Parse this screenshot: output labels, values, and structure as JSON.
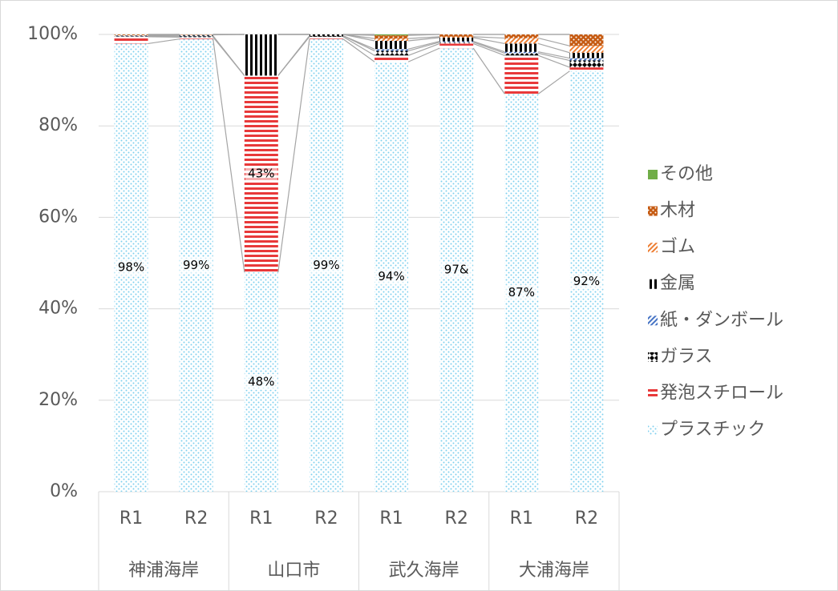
{
  "chart_data": {
    "type": "stacked_bar_100",
    "categories": [
      "R1",
      "R2",
      "R1",
      "R2",
      "R1",
      "R2",
      "R1",
      "R2"
    ],
    "category_groups": [
      "神浦海岸",
      "山口市",
      "武久海岸",
      "大浦海岸"
    ],
    "ylim": [
      0,
      100
    ],
    "yticks": [
      {
        "value": 0,
        "label": "0%"
      },
      {
        "value": 20,
        "label": "20%"
      },
      {
        "value": 40,
        "label": "40%"
      },
      {
        "value": 60,
        "label": "60%"
      },
      {
        "value": 80,
        "label": "80%"
      },
      {
        "value": 100,
        "label": "100%"
      }
    ],
    "grid": true,
    "legend": "right",
    "series": [
      {
        "name": "プラスチック",
        "color": "#7fd0ee",
        "pattern": "dots",
        "values": [
          98,
          99,
          48,
          99,
          94,
          97,
          87,
          92
        ],
        "value_labels": [
          "98%",
          "99%",
          "48%",
          "99%",
          "94%",
          "97&",
          "87%",
          "92%"
        ]
      },
      {
        "name": "発泡スチロール",
        "color": "#e8393a",
        "pattern": "hstripes",
        "values": [
          1.5,
          0.4,
          43,
          0.5,
          1.4,
          1.0,
          8.4,
          0.8
        ],
        "value_labels": [
          null,
          null,
          "43%",
          null,
          null,
          null,
          null,
          null
        ]
      },
      {
        "name": "ガラス",
        "color": "#000000",
        "pattern": "diamonds",
        "values": [
          0.1,
          0.2,
          0,
          0.2,
          1.0,
          0.3,
          0.5,
          1.5
        ]
      },
      {
        "name": "紙・ダンボール",
        "color": "#4472c4",
        "pattern": "diagonal",
        "values": [
          0.1,
          0.1,
          0,
          0,
          0.4,
          0.2,
          0.3,
          0.5
        ]
      },
      {
        "name": "金属",
        "color": "#000000",
        "pattern": "vstripes",
        "values": [
          0.1,
          0.2,
          9,
          0.3,
          1.8,
          0.8,
          1.8,
          1.2
        ]
      },
      {
        "name": "ゴム",
        "color": "#ed7d31",
        "pattern": "diagonal",
        "values": [
          0.1,
          0.1,
          0,
          0,
          0.5,
          0.2,
          1.2,
          1.5
        ]
      },
      {
        "name": "木材",
        "color": "#c55a11",
        "pattern": "dots",
        "values": [
          0.1,
          0,
          0,
          0,
          0.7,
          0.5,
          0.8,
          2.5
        ]
      },
      {
        "name": "その他",
        "color": "#70ad47",
        "pattern": "solid",
        "values": [
          0,
          0,
          0,
          0,
          0.2,
          0,
          0,
          0
        ]
      }
    ]
  }
}
